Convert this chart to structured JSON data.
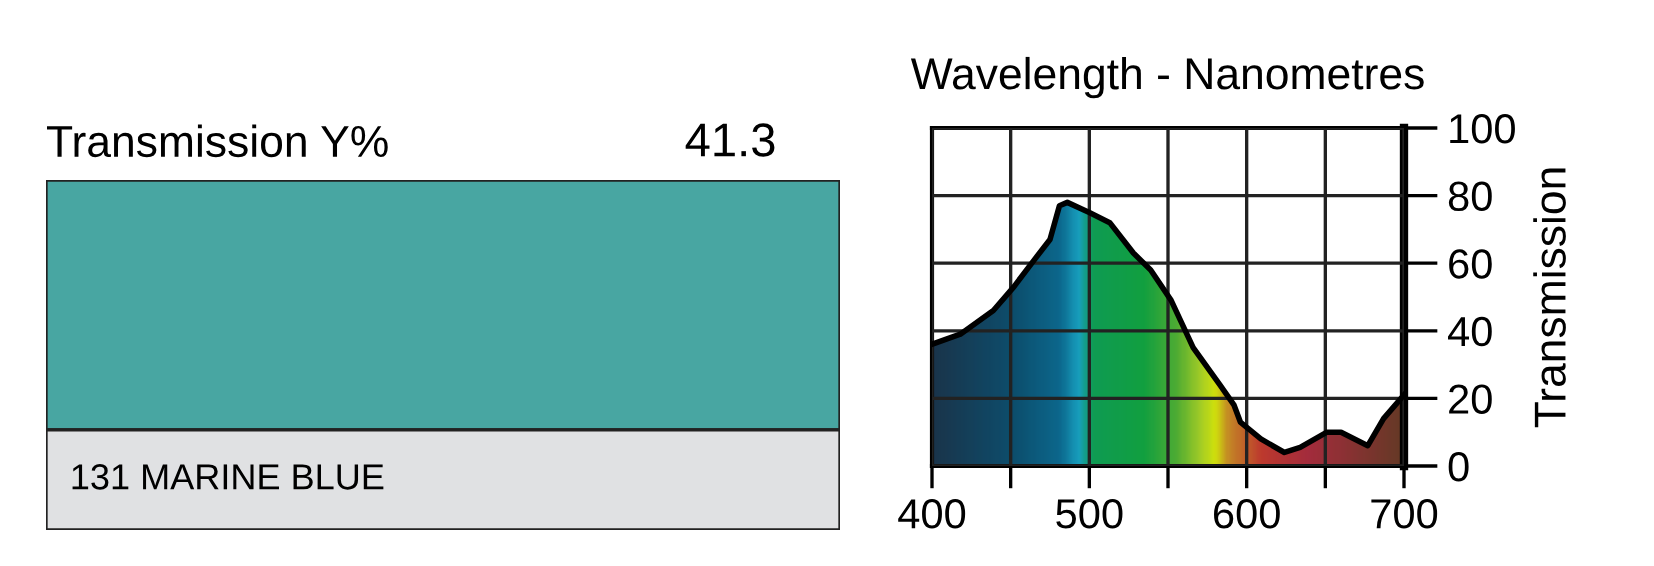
{
  "chart_data": [
    {
      "type": "other",
      "title": "Transmission Y%",
      "annotations": [
        "41.3",
        "131 MARINE BLUE"
      ],
      "color": "#48a6a2"
    },
    {
      "type": "area",
      "title": "Wavelength - Nanometres",
      "ylabel": "Transmission",
      "series": [
        {
          "color": "#12a040",
          "x": [
            400,
            418,
            439,
            452,
            465,
            475,
            481,
            486,
            500,
            513,
            528,
            539,
            552,
            566,
            583,
            592,
            596,
            609,
            624,
            634,
            651,
            660,
            677,
            687,
            700
          ],
          "values": [
            36,
            39,
            46,
            53,
            61,
            67,
            77,
            78,
            75,
            72,
            63,
            58,
            49,
            35,
            24,
            18,
            13,
            8,
            4,
            5.5,
            10,
            10,
            6,
            14,
            21
          ]
        }
      ],
      "xlim": [
        400,
        700
      ],
      "xticks": [
        400,
        {
          "value": 450,
          "label": null
        },
        500,
        {
          "value": 550,
          "label": null
        },
        600,
        {
          "value": 650,
          "label": null
        },
        700
      ],
      "ylim": [
        0,
        100
      ],
      "yticks": [
        0,
        20,
        40,
        60,
        80,
        100
      ],
      "grid": true
    }
  ]
}
